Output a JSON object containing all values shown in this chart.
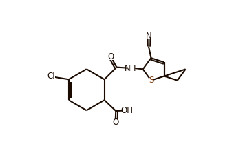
{
  "bg_color": "#ffffff",
  "line_color": "#1a0a00",
  "s_color": "#8B4513",
  "line_width": 1.5,
  "font_size": 8.5,
  "figsize": [
    3.4,
    2.41
  ],
  "dpi": 100,
  "xlim": [
    0.0,
    8.5
  ],
  "ylim": [
    0.5,
    7.0
  ]
}
